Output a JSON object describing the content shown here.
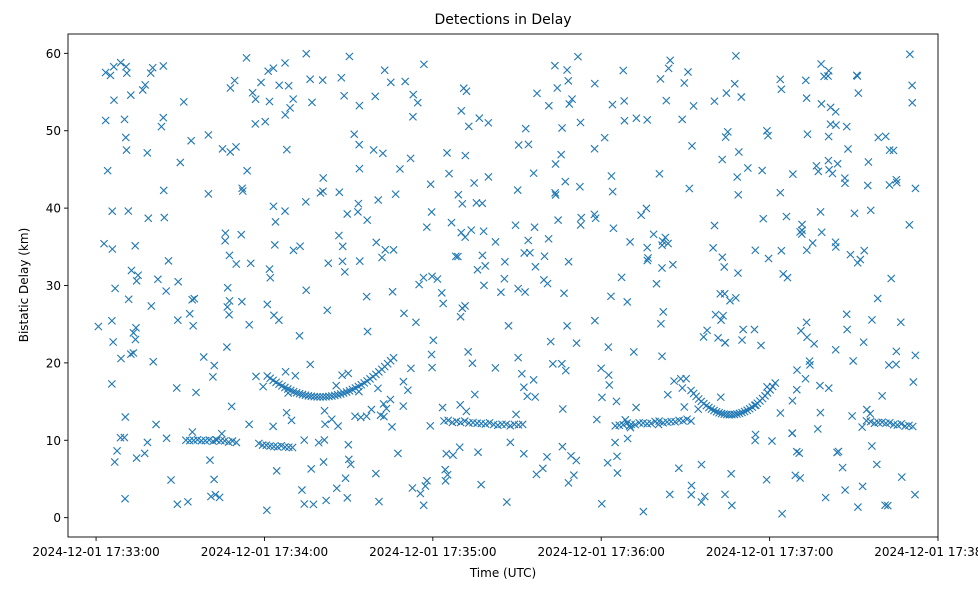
{
  "chart_data": {
    "type": "scatter",
    "title": "Detections in Delay",
    "xlabel": "Time (UTC)",
    "ylabel": "Bistatic Delay (km)",
    "x_unit": "seconds after 2024-12-01 17:33:00 UTC",
    "xlim": [
      -10,
      300
    ],
    "ylim": [
      -2.5,
      62.5
    ],
    "x_ticks": [
      {
        "value": 0,
        "label": "2024-12-01 17:33:00"
      },
      {
        "value": 60,
        "label": "2024-12-01 17:34:00"
      },
      {
        "value": 120,
        "label": "2024-12-01 17:35:00"
      },
      {
        "value": 180,
        "label": "2024-12-01 17:36:00"
      },
      {
        "value": 240,
        "label": "2024-12-01 17:37:00"
      },
      {
        "value": 300,
        "label": "2024-12-01 17:38:00"
      }
    ],
    "y_ticks": [
      0,
      10,
      20,
      30,
      40,
      50,
      60
    ],
    "marker": "x",
    "color": "#1f77b4",
    "grid": false,
    "legend": "none",
    "track_segments": [
      {
        "t_start": 32,
        "t_end": 50,
        "delay_start": 10.0,
        "delay_end": 9.8,
        "n": 14
      },
      {
        "t_start": 58,
        "t_end": 70,
        "delay_start": 9.5,
        "delay_end": 9.1,
        "n": 10
      },
      {
        "t_start": 124,
        "t_end": 152,
        "delay_start": 12.5,
        "delay_end": 11.9,
        "n": 20
      },
      {
        "t_start": 185,
        "t_end": 212,
        "delay_start": 12.0,
        "delay_end": 12.6,
        "n": 20
      },
      {
        "t_start": 276,
        "t_end": 291,
        "delay_start": 12.3,
        "delay_end": 11.9,
        "n": 12
      }
    ],
    "track_parabolas": [
      {
        "t_start": 61,
        "t_end": 106,
        "t_vertex": 80,
        "delay_vertex": 15.6,
        "curvature": 0.0075,
        "n": 44
      },
      {
        "t_start": 212,
        "t_end": 242,
        "t_vertex": 226,
        "delay_vertex": 13.3,
        "curvature": 0.016,
        "n": 34
      }
    ],
    "clutter": {
      "count": 620,
      "t_range": [
        0,
        292
      ],
      "delay_range": [
        0.5,
        60
      ]
    }
  }
}
